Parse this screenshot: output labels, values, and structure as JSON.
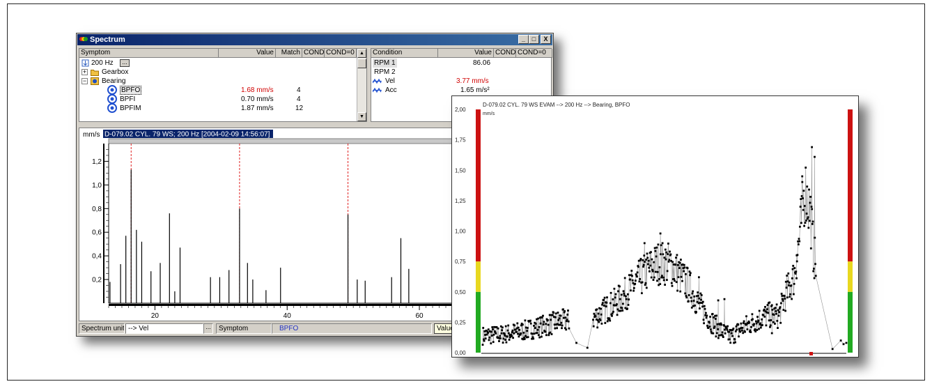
{
  "spectrum_window": {
    "title": "Spectrum",
    "buttons": [
      "_",
      "□",
      "X"
    ],
    "symptom_table": {
      "headers": [
        "Symptom",
        "Value",
        "Match",
        "COND",
        "COND=0"
      ],
      "frequency_value": "200 Hz",
      "more_button": "...",
      "rows": [
        {
          "label": "Gearbox",
          "value": "",
          "match": "",
          "kind": "folder"
        },
        {
          "label": "Bearing",
          "value": "",
          "match": "",
          "kind": "bearing"
        },
        {
          "label": "BPFO",
          "value": "1.68 mm/s",
          "match": "4",
          "kind": "symptom",
          "alarm": true
        },
        {
          "label": "BPFI",
          "value": "0.70 mm/s",
          "match": "4",
          "kind": "symptom",
          "alarm": false
        },
        {
          "label": "BPFIM",
          "value": "1.87 mm/s",
          "match": "12",
          "kind": "symptom",
          "alarm": false
        }
      ]
    },
    "condition_table": {
      "headers": [
        "Condition",
        "Value",
        "COND",
        "COND=0"
      ],
      "rows": [
        {
          "label": "RPM 1",
          "value": "86.06",
          "alarm": false
        },
        {
          "label": "RPM 2",
          "value": "",
          "alarm": false
        },
        {
          "label": "Vel",
          "value": "3.77 mm/s",
          "alarm": true
        },
        {
          "label": "Acc",
          "value": "1.65 m/s²",
          "alarm": false
        }
      ]
    },
    "status_bar": {
      "spectrum_unit_label": "Spectrum unit",
      "spectrum_unit_value": "--> Vel",
      "dropdown_button": "...",
      "symptom_label": "Symptom",
      "symptom_value": "BPFO",
      "value_label": "Value="
    }
  },
  "chart_data": [
    {
      "type": "bar",
      "title": "D-079.02 CYL. 79 WS; 200 Hz [2004-02-09 14:56:07]",
      "ylabel": "mm/s",
      "xlim": [
        13,
        66
      ],
      "ylim": [
        0,
        1.35
      ],
      "xticks": [
        20,
        40,
        60
      ],
      "yticks": [
        0.2,
        0.4,
        0.6,
        0.8,
        1.0,
        1.2
      ],
      "ytick_labels": [
        "0,2",
        "0,4",
        "0,6",
        "0,8",
        "1,0",
        "1,2"
      ],
      "markers": [
        16.4,
        32.8,
        49.2
      ],
      "bars": [
        {
          "x": 13.2,
          "y": 0.18
        },
        {
          "x": 14.8,
          "y": 0.33
        },
        {
          "x": 15.6,
          "y": 0.57
        },
        {
          "x": 16.4,
          "y": 1.13
        },
        {
          "x": 17.2,
          "y": 0.62
        },
        {
          "x": 18.0,
          "y": 0.52
        },
        {
          "x": 19.4,
          "y": 0.27
        },
        {
          "x": 20.8,
          "y": 0.34
        },
        {
          "x": 22.2,
          "y": 0.76
        },
        {
          "x": 23.0,
          "y": 0.1
        },
        {
          "x": 23.8,
          "y": 0.47
        },
        {
          "x": 28.4,
          "y": 0.22
        },
        {
          "x": 29.8,
          "y": 0.22
        },
        {
          "x": 31.2,
          "y": 0.28
        },
        {
          "x": 32.8,
          "y": 0.8
        },
        {
          "x": 34.0,
          "y": 0.34
        },
        {
          "x": 34.8,
          "y": 0.2
        },
        {
          "x": 36.8,
          "y": 0.11
        },
        {
          "x": 39.0,
          "y": 0.3
        },
        {
          "x": 49.2,
          "y": 0.75
        },
        {
          "x": 50.6,
          "y": 0.2
        },
        {
          "x": 51.8,
          "y": 0.19
        },
        {
          "x": 55.8,
          "y": 0.22
        },
        {
          "x": 57.2,
          "y": 0.55
        },
        {
          "x": 58.4,
          "y": 0.29
        }
      ]
    },
    {
      "type": "scatter",
      "title": "D-079.02 CYL. 79 WS EVAM --> 200 Hz --> Bearing, BPFO",
      "ylabel": "mm/s",
      "ylim": [
        0,
        2.0
      ],
      "yticks": [
        0,
        0.25,
        0.5,
        0.75,
        1.0,
        1.25,
        1.5,
        1.75,
        2.0
      ],
      "ytick_labels": [
        "0,00",
        "0,25",
        "0,50",
        "0,75",
        "1,00",
        "1,25",
        "1,50",
        "1,75",
        "2,00"
      ],
      "alarm_bands": [
        {
          "from": 0,
          "to": 0.5,
          "color": "#22aa22"
        },
        {
          "from": 0.5,
          "to": 0.75,
          "color": "#e8d820"
        },
        {
          "from": 0.75,
          "to": 2.0,
          "color": "#cc1111"
        }
      ],
      "control_points": [
        [
          0,
          0.14
        ],
        [
          30,
          0.15
        ],
        [
          60,
          0.18
        ],
        [
          80,
          0.21
        ],
        [
          96,
          0.23
        ],
        [
          112,
          0.26
        ],
        [
          126,
          0.26
        ],
        [
          160,
          0.28
        ],
        [
          180,
          0.36
        ],
        [
          200,
          0.44
        ],
        [
          220,
          0.56
        ],
        [
          240,
          0.68
        ],
        [
          256,
          0.74
        ],
        [
          272,
          0.73
        ],
        [
          286,
          0.64
        ],
        [
          300,
          0.54
        ],
        [
          316,
          0.38
        ],
        [
          330,
          0.27
        ],
        [
          346,
          0.18
        ],
        [
          360,
          0.13
        ],
        [
          376,
          0.2
        ],
        [
          396,
          0.26
        ],
        [
          414,
          0.31
        ],
        [
          430,
          0.3
        ],
        [
          440,
          0.48
        ],
        [
          452,
          0.62
        ],
        [
          460,
          0.95
        ],
        [
          468,
          1.35
        ],
        [
          476,
          1.15
        ],
        [
          480,
          0.85
        ],
        [
          484,
          0.7
        ],
        [
          520,
          0.1
        ],
        [
          528,
          0.08
        ]
      ],
      "outliers": [
        [
          136,
          0.08
        ],
        [
          152,
          0.04
        ],
        [
          235,
          0.9
        ],
        [
          258,
          0.98
        ],
        [
          314,
          0.62
        ],
        [
          342,
          0.43
        ],
        [
          351,
          0.44
        ],
        [
          420,
          0.16
        ],
        [
          456,
          0.8
        ],
        [
          464,
          1.45
        ],
        [
          478,
          1.69
        ],
        [
          482,
          1.61
        ],
        [
          508,
          0.03
        ]
      ]
    }
  ]
}
